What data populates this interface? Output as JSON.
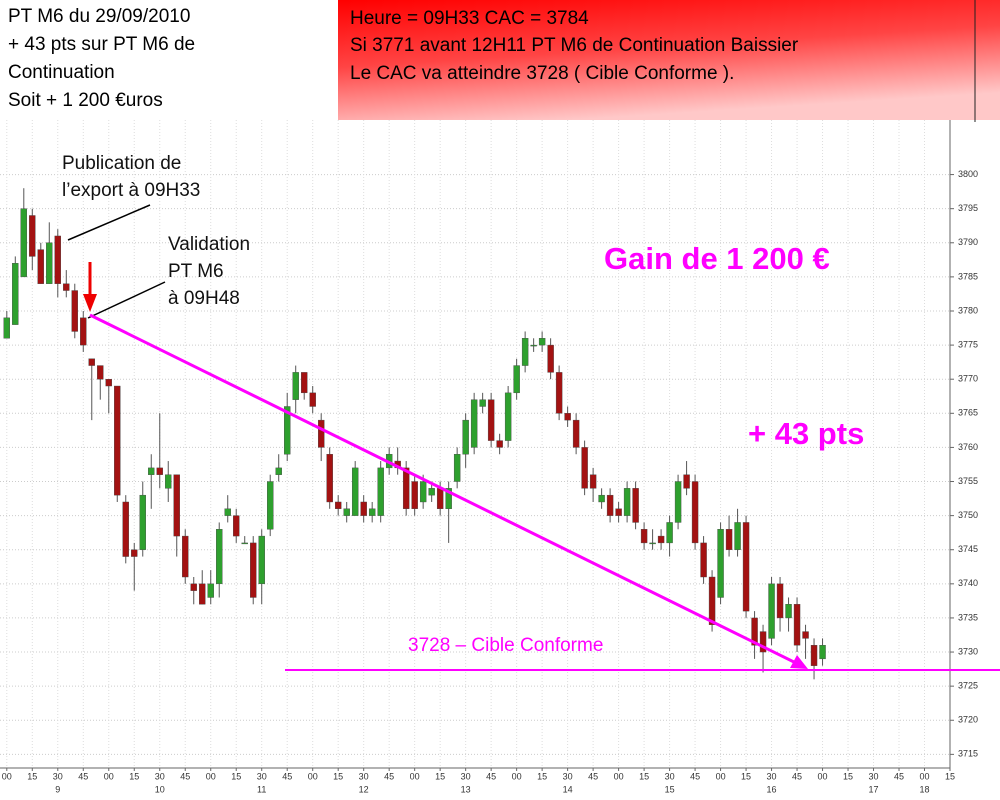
{
  "header": {
    "left": [
      "PT M6 du 29/09/2010",
      "+ 43 pts sur PT M6 de",
      "Continuation",
      "Soit + 1 200 €uros"
    ],
    "right": [
      "Heure = 09H33  CAC = 3784",
      "Si 3771 avant 12H11 PT M6 de Continuation Baissier",
      "Le CAC va atteindre 3728 ( Cible Conforme )."
    ]
  },
  "annotations": {
    "publication": [
      "Publication de",
      "l’export à 09H33"
    ],
    "validation": [
      "Validation",
      "PT M6",
      "à 09H48"
    ],
    "gain": "Gain de 1 200 €",
    "pts": "+ 43 pts",
    "target": "3728 – Cible Conforme"
  },
  "chart_data": {
    "type": "candlestick",
    "up_color": "#2ea02e",
    "down_color": "#a31212",
    "grid": true,
    "xlim": [
      "8:56",
      "18:15"
    ],
    "ylim": [
      3713,
      3808
    ],
    "yticks": [
      3715,
      3720,
      3725,
      3730,
      3735,
      3740,
      3745,
      3750,
      3755,
      3760,
      3765,
      3770,
      3775,
      3780,
      3785,
      3790,
      3795,
      3800
    ],
    "xticks": [
      {
        "value": "9:00",
        "label": "00"
      },
      {
        "value": "9:15",
        "label": "15"
      },
      {
        "value": "9:30",
        "label": "30"
      },
      {
        "value": "9:45",
        "label": "45"
      },
      {
        "value": "10:00",
        "label": "00"
      },
      {
        "value": "10:15",
        "label": "15"
      },
      {
        "value": "10:30",
        "label": "30"
      },
      {
        "value": "10:45",
        "label": "45"
      },
      {
        "value": "11:00",
        "label": "00"
      },
      {
        "value": "11:15",
        "label": "15"
      },
      {
        "value": "11:30",
        "label": "30"
      },
      {
        "value": "11:45",
        "label": "45"
      },
      {
        "value": "12:00",
        "label": "00"
      },
      {
        "value": "12:15",
        "label": "15"
      },
      {
        "value": "12:30",
        "label": "30"
      },
      {
        "value": "12:45",
        "label": "45"
      },
      {
        "value": "13:00",
        "label": "00"
      },
      {
        "value": "13:15",
        "label": "15"
      },
      {
        "value": "13:30",
        "label": "30"
      },
      {
        "value": "13:45",
        "label": "45"
      },
      {
        "value": "14:00",
        "label": "00"
      },
      {
        "value": "14:15",
        "label": "15"
      },
      {
        "value": "14:30",
        "label": "30"
      },
      {
        "value": "14:45",
        "label": "45"
      },
      {
        "value": "15:00",
        "label": "00"
      },
      {
        "value": "15:15",
        "label": "15"
      },
      {
        "value": "15:30",
        "label": "30"
      },
      {
        "value": "15:45",
        "label": "45"
      },
      {
        "value": "16:00",
        "label": "00"
      },
      {
        "value": "16:15",
        "label": "15"
      },
      {
        "value": "16:30",
        "label": "30"
      },
      {
        "value": "16:45",
        "label": "45"
      },
      {
        "value": "17:00",
        "label": "00"
      },
      {
        "value": "17:15",
        "label": "15"
      },
      {
        "value": "17:30",
        "label": "30"
      },
      {
        "value": "17:45",
        "label": "45"
      },
      {
        "value": "18:00",
        "label": "00"
      },
      {
        "value": "18:15",
        "label": "15"
      }
    ],
    "xticks_hours": [
      {
        "value": "9:30",
        "label": "9"
      },
      {
        "value": "10:30",
        "label": "10"
      },
      {
        "value": "11:30",
        "label": "11"
      },
      {
        "value": "12:30",
        "label": "12"
      },
      {
        "value": "13:30",
        "label": "13"
      },
      {
        "value": "14:30",
        "label": "14"
      },
      {
        "value": "15:30",
        "label": "15"
      },
      {
        "value": "16:30",
        "label": "16"
      },
      {
        "value": "17:30",
        "label": "17"
      },
      {
        "value": "18:00",
        "label": "18"
      }
    ],
    "x": [
      "9:00",
      "9:05",
      "9:10",
      "9:15",
      "9:20",
      "9:25",
      "9:30",
      "9:35",
      "9:40",
      "9:45",
      "9:50",
      "9:55",
      "10:00",
      "10:05",
      "10:10",
      "10:15",
      "10:20",
      "10:25",
      "10:30",
      "10:35",
      "10:40",
      "10:45",
      "10:50",
      "10:55",
      "11:00",
      "11:05",
      "11:10",
      "11:15",
      "11:20",
      "11:25",
      "11:30",
      "11:35",
      "11:40",
      "11:45",
      "11:50",
      "11:55",
      "12:00",
      "12:05",
      "12:10",
      "12:15",
      "12:20",
      "12:25",
      "12:30",
      "12:35",
      "12:40",
      "12:45",
      "12:50",
      "12:55",
      "13:00",
      "13:05",
      "13:10",
      "13:15",
      "13:20",
      "13:25",
      "13:30",
      "13:35",
      "13:40",
      "13:45",
      "13:50",
      "13:55",
      "14:00",
      "14:05",
      "14:10",
      "14:15",
      "14:20",
      "14:25",
      "14:30",
      "14:35",
      "14:40",
      "14:45",
      "14:50",
      "14:55",
      "15:00",
      "15:05",
      "15:10",
      "15:15",
      "15:20",
      "15:25",
      "15:30",
      "15:35",
      "15:40",
      "15:45",
      "15:50",
      "15:55",
      "16:00",
      "16:05",
      "16:10",
      "16:15",
      "16:20",
      "16:25",
      "16:30",
      "16:35",
      "16:40",
      "16:45",
      "16:50",
      "16:55",
      "17:00"
    ],
    "open": [
      3776,
      3778,
      3785,
      3794,
      3789,
      3784,
      3791,
      3784,
      3783,
      3779,
      3773,
      3772,
      3770,
      3769,
      3752,
      3745,
      3745,
      3756,
      3757,
      3754,
      3756,
      3747,
      3740,
      3740,
      3738,
      3740,
      3750,
      3750,
      3746,
      3746,
      3740,
      3748,
      3756,
      3759,
      3767,
      3771,
      3768,
      3764,
      3759,
      3752,
      3750,
      3750,
      3752,
      3750,
      3750,
      3757,
      3758,
      3757,
      3755,
      3752,
      3753,
      3754,
      3751,
      3755,
      3759,
      3760,
      3766,
      3767,
      3761,
      3761,
      3768,
      3772,
      3775,
      3775,
      3775,
      3771,
      3765,
      3764,
      3760,
      3756,
      3752,
      3753,
      3751,
      3750,
      3754,
      3748,
      3746,
      3747,
      3746,
      3749,
      3756,
      3755,
      3746,
      3741,
      3738,
      3748,
      3745,
      3749,
      3735,
      3733,
      3732,
      3740,
      3735,
      3737,
      3733,
      3731,
      3729
    ],
    "high": [
      3780,
      3788,
      3798,
      3795,
      3790,
      3793,
      3792,
      3786,
      3784,
      3780,
      3773,
      3772,
      3770,
      3769,
      3753,
      3746,
      3755,
      3759,
      3765,
      3758,
      3756,
      3748,
      3741,
      3742,
      3742,
      3749,
      3753,
      3751,
      3747,
      3747,
      3748,
      3756,
      3759,
      3768,
      3772,
      3771,
      3769,
      3765,
      3760,
      3753,
      3752,
      3758,
      3753,
      3752,
      3758,
      3760,
      3760,
      3758,
      3756,
      3756,
      3755,
      3755,
      3755,
      3760,
      3765,
      3768,
      3768,
      3768,
      3762,
      3769,
      3773,
      3777,
      3776,
      3777,
      3776,
      3772,
      3766,
      3765,
      3761,
      3757,
      3754,
      3754,
      3752,
      3755,
      3755,
      3749,
      3748,
      3748,
      3750,
      3756,
      3758,
      3756,
      3747,
      3742,
      3749,
      3750,
      3751,
      3750,
      3736,
      3734,
      3741,
      3741,
      3738,
      3738,
      3734,
      3732,
      3732
    ],
    "low": [
      3776,
      3778,
      3785,
      3786,
      3784,
      3784,
      3782,
      3782,
      3776,
      3774,
      3764,
      3767,
      3765,
      3752,
      3743,
      3739,
      3744,
      3751,
      3754,
      3752,
      3744,
      3740,
      3737,
      3737,
      3737,
      3738,
      3749,
      3746,
      3746,
      3737,
      3737,
      3747,
      3755,
      3758,
      3765,
      3767,
      3765,
      3758,
      3751,
      3750,
      3749,
      3750,
      3749,
      3749,
      3749,
      3756,
      3756,
      3750,
      3750,
      3751,
      3752,
      3750,
      3746,
      3754,
      3757,
      3759,
      3765,
      3760,
      3759,
      3760,
      3767,
      3771,
      3774,
      3774,
      3770,
      3764,
      3763,
      3759,
      3753,
      3752,
      3751,
      3749,
      3749,
      3749,
      3748,
      3745,
      3745,
      3745,
      3744,
      3748,
      3753,
      3745,
      3740,
      3733,
      3737,
      3744,
      3744,
      3735,
      3729,
      3727,
      3731,
      3733,
      3733,
      3730,
      3729,
      3726,
      3728
    ],
    "close": [
      3779,
      3787,
      3795,
      3788,
      3784,
      3790,
      3784,
      3783,
      3777,
      3775,
      3772,
      3770,
      3769,
      3753,
      3744,
      3744,
      3753,
      3757,
      3756,
      3756,
      3747,
      3741,
      3739,
      3737,
      3740,
      3748,
      3751,
      3747,
      3746,
      3738,
      3747,
      3755,
      3757,
      3766,
      3771,
      3768,
      3766,
      3760,
      3752,
      3751,
      3751,
      3757,
      3750,
      3751,
      3757,
      3759,
      3757,
      3751,
      3751,
      3755,
      3754,
      3751,
      3754,
      3759,
      3764,
      3767,
      3767,
      3761,
      3760,
      3768,
      3772,
      3776,
      3775,
      3776,
      3771,
      3765,
      3764,
      3760,
      3754,
      3754,
      3753,
      3750,
      3750,
      3754,
      3749,
      3746,
      3746,
      3746,
      3749,
      3755,
      3754,
      3746,
      3741,
      3734,
      3748,
      3745,
      3749,
      3736,
      3731,
      3730,
      3740,
      3735,
      3737,
      3731,
      3732,
      3728,
      3731
    ]
  }
}
